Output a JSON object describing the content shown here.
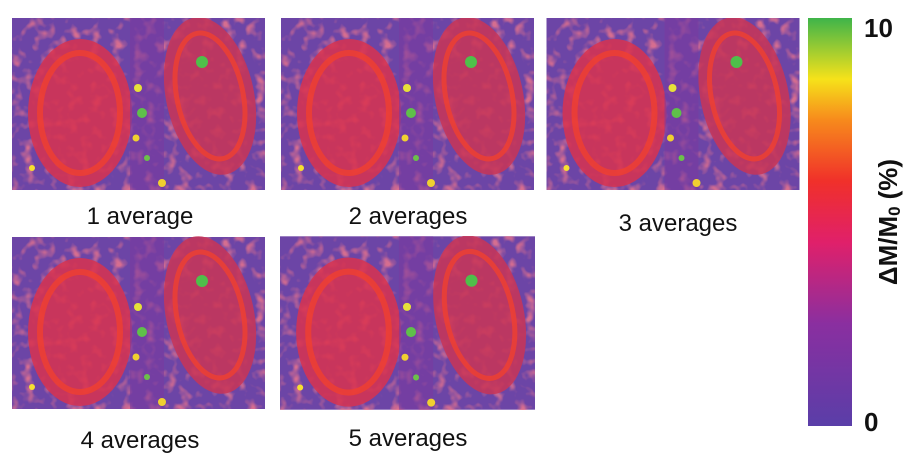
{
  "panels": [
    {
      "label": "1 average"
    },
    {
      "label": "2 averages"
    },
    {
      "label": "3 averages"
    },
    {
      "label": "4 averages"
    },
    {
      "label": "5 averages"
    }
  ],
  "colorbar": {
    "title": {
      "main": "ΔM/M",
      "sub": "0",
      "unit": "(%)"
    },
    "range": [
      0,
      10
    ],
    "ticks": [
      0,
      10
    ]
  }
}
